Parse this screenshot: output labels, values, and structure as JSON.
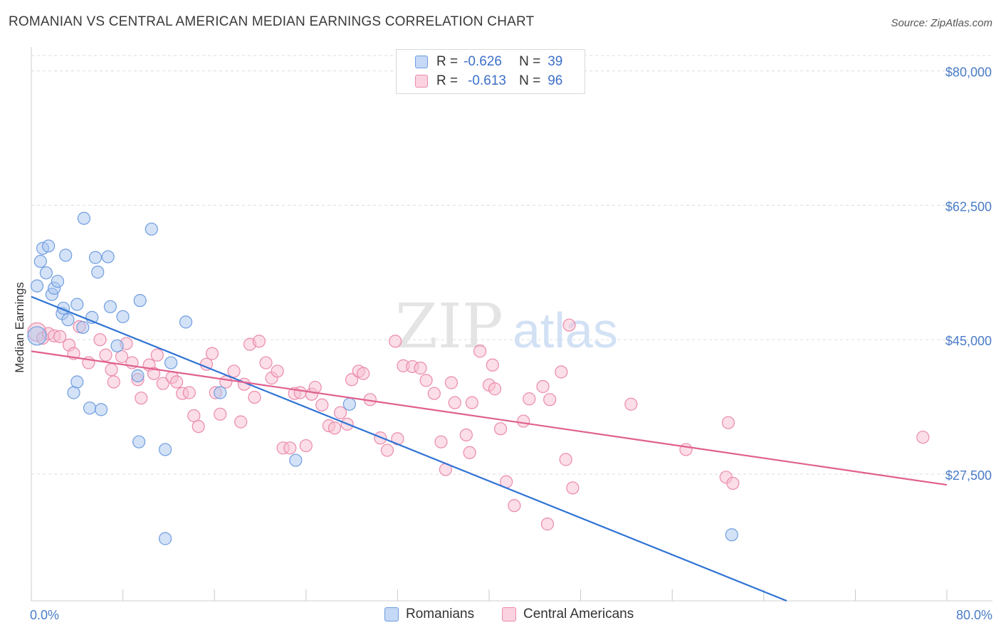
{
  "title": "ROMANIAN VS CENTRAL AMERICAN MEDIAN EARNINGS CORRELATION CHART",
  "source": "Source: ZipAtlas.com",
  "watermark": {
    "zip": "ZIP",
    "atlas": "atlas"
  },
  "legend": {
    "rows": [
      {
        "r_label": "R =",
        "r_value": "-0.626",
        "n_label": "N =",
        "n_value": "39",
        "color": "#a9c6f0",
        "border": "#6f9de0"
      },
      {
        "r_label": "R =",
        "r_value": "-0.613",
        "n_label": "N =",
        "n_value": "96",
        "color": "#f7bdd0",
        "border": "#eb8aab"
      }
    ]
  },
  "bottom_legend": [
    {
      "label": "Romanians",
      "color": "#a9c6f0",
      "border": "#6f9de0"
    },
    {
      "label": "Central Americans",
      "color": "#f7bdd0",
      "border": "#eb8aab"
    }
  ],
  "chart_data": {
    "type": "scatter",
    "title": "ROMANIAN VS CENTRAL AMERICAN MEDIAN EARNINGS CORRELATION CHART",
    "xlabel": "",
    "ylabel": "Median Earnings",
    "xlim": [
      0,
      80
    ],
    "ylim": [
      11000,
      82000
    ],
    "x_tick_labels": [
      "0.0%",
      "80.0%"
    ],
    "y_ticks": [
      {
        "value": 80000,
        "label": "$80,000"
      },
      {
        "value": 62500,
        "label": "$62,500"
      },
      {
        "value": 45000,
        "label": "$45,000"
      },
      {
        "value": 27500,
        "label": "$27,500"
      }
    ],
    "grid": true,
    "series": [
      {
        "name": "Romanians",
        "color": "#6f9de0",
        "fill": "#a9c6f0",
        "trend": {
          "x0": 0,
          "y0": 50600,
          "x1": 66,
          "y1": 11000,
          "color": "#2f73d4"
        },
        "points": [
          [
            0.5,
            45500
          ],
          [
            0.5,
            52000
          ],
          [
            0.8,
            55200
          ],
          [
            1.0,
            56900
          ],
          [
            1.3,
            53700
          ],
          [
            1.5,
            57200
          ],
          [
            1.8,
            50900
          ],
          [
            2.0,
            51700
          ],
          [
            2.3,
            52600
          ],
          [
            2.7,
            48400
          ],
          [
            2.8,
            49100
          ],
          [
            3.0,
            56000
          ],
          [
            3.2,
            47600
          ],
          [
            4.0,
            49600
          ],
          [
            4.5,
            46600
          ],
          [
            5.3,
            47900
          ],
          [
            5.6,
            55700
          ],
          [
            4.6,
            60800
          ],
          [
            5.8,
            53800
          ],
          [
            6.7,
            55800
          ],
          [
            6.9,
            49300
          ],
          [
            7.5,
            44200
          ],
          [
            8.0,
            48000
          ],
          [
            9.3,
            40300
          ],
          [
            9.5,
            50100
          ],
          [
            10.5,
            59400
          ],
          [
            12.2,
            42000
          ],
          [
            13.5,
            47300
          ],
          [
            4.0,
            39500
          ],
          [
            3.7,
            38100
          ],
          [
            5.1,
            36100
          ],
          [
            6.1,
            35900
          ],
          [
            9.4,
            31700
          ],
          [
            11.7,
            30700
          ],
          [
            16.5,
            38100
          ],
          [
            27.8,
            36600
          ],
          [
            23.1,
            29300
          ],
          [
            11.7,
            19100
          ],
          [
            61.2,
            19600
          ]
        ]
      },
      {
        "name": "Central Americans",
        "color": "#eb8aab",
        "fill": "#f7bdd0",
        "trend": {
          "x0": 0,
          "y0": 43500,
          "x1": 80,
          "y1": 26100,
          "color": "#e0608f"
        },
        "points": [
          [
            0.5,
            46000
          ],
          [
            1.0,
            45200
          ],
          [
            1.5,
            45800
          ],
          [
            2.0,
            45500
          ],
          [
            2.5,
            45400
          ],
          [
            3.3,
            44300
          ],
          [
            3.7,
            43200
          ],
          [
            4.2,
            46700
          ],
          [
            5.0,
            42000
          ],
          [
            6.0,
            45000
          ],
          [
            6.5,
            43000
          ],
          [
            7.0,
            41100
          ],
          [
            7.2,
            39500
          ],
          [
            7.9,
            42800
          ],
          [
            8.3,
            44500
          ],
          [
            8.8,
            42000
          ],
          [
            9.3,
            39800
          ],
          [
            9.6,
            37400
          ],
          [
            10.3,
            41700
          ],
          [
            10.7,
            40600
          ],
          [
            11.0,
            43000
          ],
          [
            11.5,
            39300
          ],
          [
            12.3,
            40100
          ],
          [
            12.7,
            39500
          ],
          [
            13.2,
            38000
          ],
          [
            13.8,
            38100
          ],
          [
            14.2,
            35100
          ],
          [
            14.6,
            33700
          ],
          [
            15.3,
            41800
          ],
          [
            15.8,
            43200
          ],
          [
            16.1,
            38100
          ],
          [
            16.5,
            35300
          ],
          [
            17.0,
            39500
          ],
          [
            17.7,
            40900
          ],
          [
            18.3,
            34300
          ],
          [
            18.6,
            39200
          ],
          [
            19.1,
            44400
          ],
          [
            19.5,
            37500
          ],
          [
            19.9,
            44800
          ],
          [
            20.5,
            42000
          ],
          [
            21.0,
            40000
          ],
          [
            21.5,
            40900
          ],
          [
            22.0,
            30900
          ],
          [
            22.6,
            30900
          ],
          [
            23.0,
            38000
          ],
          [
            23.5,
            38100
          ],
          [
            24.0,
            31200
          ],
          [
            24.5,
            37900
          ],
          [
            24.8,
            38800
          ],
          [
            25.4,
            36500
          ],
          [
            26.0,
            33800
          ],
          [
            26.5,
            33500
          ],
          [
            27.0,
            35500
          ],
          [
            27.6,
            34000
          ],
          [
            28.0,
            39800
          ],
          [
            28.6,
            40900
          ],
          [
            29.0,
            40600
          ],
          [
            29.6,
            37200
          ],
          [
            30.5,
            32200
          ],
          [
            31.1,
            30600
          ],
          [
            31.8,
            44800
          ],
          [
            32.5,
            41600
          ],
          [
            33.3,
            41500
          ],
          [
            34.0,
            41300
          ],
          [
            34.5,
            39700
          ],
          [
            35.2,
            38000
          ],
          [
            35.8,
            31700
          ],
          [
            36.2,
            28100
          ],
          [
            36.7,
            39400
          ],
          [
            37.0,
            36800
          ],
          [
            38.0,
            32600
          ],
          [
            38.3,
            30300
          ],
          [
            38.5,
            36800
          ],
          [
            39.2,
            43500
          ],
          [
            40.0,
            39100
          ],
          [
            40.5,
            38600
          ],
          [
            41.0,
            33400
          ],
          [
            41.5,
            26500
          ],
          [
            42.2,
            23400
          ],
          [
            43.0,
            34400
          ],
          [
            43.5,
            37300
          ],
          [
            44.7,
            38900
          ],
          [
            45.1,
            21000
          ],
          [
            45.3,
            37200
          ],
          [
            46.7,
            29400
          ],
          [
            46.3,
            40800
          ],
          [
            47.0,
            46900
          ],
          [
            47.3,
            25700
          ],
          [
            52.4,
            36600
          ],
          [
            57.2,
            30700
          ],
          [
            60.7,
            27100
          ],
          [
            60.9,
            34200
          ],
          [
            61.3,
            26300
          ],
          [
            77.9,
            32300
          ],
          [
            40.3,
            41700
          ],
          [
            32.0,
            32100
          ]
        ]
      }
    ]
  }
}
